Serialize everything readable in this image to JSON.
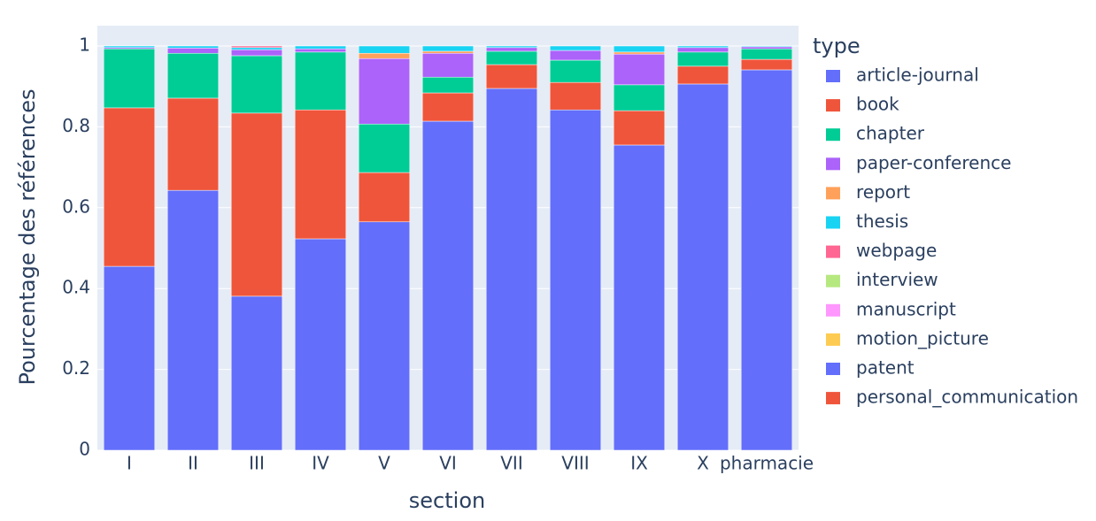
{
  "chart_data": {
    "type": "stacked_bar",
    "x_label": "section",
    "y_label": "Pourcentage des références",
    "legend_title": "type",
    "categories": [
      "I",
      "II",
      "III",
      "IV",
      "V",
      "VI",
      "VII",
      "VIII",
      "IX",
      "X",
      "pharmacie"
    ],
    "ylim": [
      0,
      1
    ],
    "yticks": [
      0,
      0.2,
      0.4,
      0.6,
      0.8,
      1
    ],
    "grid": true,
    "legend_position": "right",
    "series": [
      {
        "name": "article-journal",
        "color": "#636efa",
        "values": [
          0.455,
          0.643,
          0.381,
          0.523,
          0.565,
          0.814,
          0.895,
          0.842,
          0.755,
          0.906,
          0.941
        ]
      },
      {
        "name": "book",
        "color": "#ef553b",
        "values": [
          0.392,
          0.228,
          0.453,
          0.319,
          0.122,
          0.07,
          0.059,
          0.068,
          0.085,
          0.044,
          0.026
        ]
      },
      {
        "name": "chapter",
        "color": "#00cc96",
        "values": [
          0.146,
          0.111,
          0.142,
          0.143,
          0.12,
          0.039,
          0.033,
          0.055,
          0.064,
          0.035,
          0.026
        ]
      },
      {
        "name": "paper-conference",
        "color": "#ab63fa",
        "values": [
          0.003,
          0.013,
          0.015,
          0.008,
          0.162,
          0.059,
          0.009,
          0.024,
          0.076,
          0.011,
          0.005
        ]
      },
      {
        "name": "report",
        "color": "#ffa15a",
        "values": [
          0,
          0,
          0,
          0,
          0.013,
          0.005,
          0,
          0,
          0.005,
          0,
          0
        ]
      },
      {
        "name": "thesis",
        "color": "#19d3f3",
        "values": [
          0.004,
          0.005,
          0.005,
          0.007,
          0.018,
          0.013,
          0.004,
          0.011,
          0.015,
          0.004,
          0.002
        ]
      },
      {
        "name": "webpage",
        "color": "#ff6692",
        "values": [
          0,
          0,
          0.004,
          0,
          0,
          0,
          0,
          0,
          0,
          0,
          0
        ]
      },
      {
        "name": "interview",
        "color": "#b6e880",
        "values": [
          0,
          0,
          0,
          0,
          0,
          0,
          0,
          0,
          0,
          0,
          0
        ]
      },
      {
        "name": "manuscript",
        "color": "#ff97ff",
        "values": [
          0,
          0,
          0,
          0,
          0,
          0,
          0,
          0,
          0,
          0,
          0
        ]
      },
      {
        "name": "motion_picture",
        "color": "#fecb52",
        "values": [
          0,
          0,
          0,
          0,
          0,
          0,
          0,
          0,
          0,
          0,
          0
        ]
      },
      {
        "name": "patent",
        "color": "#636efa",
        "values": [
          0,
          0,
          0,
          0,
          0,
          0,
          0,
          0,
          0,
          0,
          0
        ]
      },
      {
        "name": "personal_communication",
        "color": "#ef553b",
        "values": [
          0,
          0,
          0,
          0,
          0,
          0,
          0,
          0,
          0,
          0,
          0
        ]
      }
    ]
  }
}
